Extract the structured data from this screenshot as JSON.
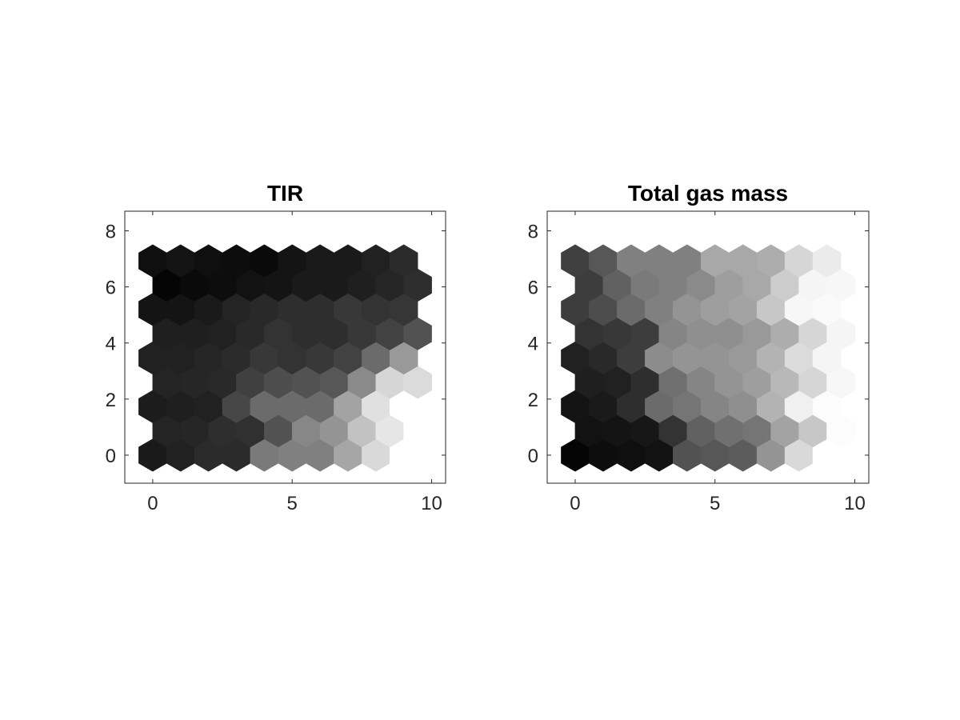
{
  "chart_data": [
    {
      "type": "heatmap",
      "title": "TIR",
      "xlabel": "",
      "ylabel": "",
      "xlim": [
        -1,
        10.5
      ],
      "ylim": [
        -1,
        8.7
      ],
      "xticks": [
        "0",
        "5",
        "10"
      ],
      "yticks": [
        "0",
        "2",
        "4",
        "6",
        "8"
      ],
      "colormap": "grayscale (dark = low, light = high)",
      "grid": "hexagonal 10 x 9",
      "rows": [
        [
          0.1,
          0.13,
          0.17,
          0.17,
          0.48,
          0.5,
          0.5,
          0.65,
          0.85,
          1.0
        ],
        [
          0.14,
          0.15,
          0.18,
          0.19,
          0.32,
          0.53,
          0.58,
          0.76,
          0.9,
          1.0
        ],
        [
          0.11,
          0.12,
          0.13,
          0.28,
          0.42,
          0.42,
          0.42,
          0.64,
          0.88,
          1.0
        ],
        [
          0.14,
          0.15,
          0.16,
          0.25,
          0.3,
          0.32,
          0.34,
          0.54,
          0.84,
          0.86
        ],
        [
          0.13,
          0.13,
          0.15,
          0.17,
          0.22,
          0.2,
          0.22,
          0.26,
          0.42,
          0.6
        ],
        [
          0.12,
          0.12,
          0.13,
          0.16,
          0.2,
          0.18,
          0.18,
          0.22,
          0.26,
          0.32
        ],
        [
          0.08,
          0.08,
          0.1,
          0.14,
          0.16,
          0.18,
          0.18,
          0.22,
          0.2,
          0.21
        ],
        [
          0.02,
          0.04,
          0.05,
          0.07,
          0.08,
          0.1,
          0.1,
          0.12,
          0.15,
          0.18
        ],
        [
          0.06,
          0.08,
          0.06,
          0.05,
          0.04,
          0.08,
          0.1,
          0.1,
          0.13,
          0.17
        ]
      ]
    },
    {
      "type": "heatmap",
      "title": "Total gas mass",
      "xlabel": "",
      "ylabel": "",
      "xlim": [
        -1,
        10.5
      ],
      "ylim": [
        -1,
        8.7
      ],
      "xticks": [
        "0",
        "5",
        "10"
      ],
      "yticks": [
        "0",
        "2",
        "4",
        "6",
        "8"
      ],
      "colormap": "grayscale (dark = low, light = high)",
      "grid": "hexagonal 10 x 9",
      "rows": [
        [
          0.02,
          0.05,
          0.06,
          0.07,
          0.32,
          0.34,
          0.36,
          0.58,
          0.85,
          1.0
        ],
        [
          0.07,
          0.08,
          0.09,
          0.2,
          0.38,
          0.44,
          0.46,
          0.64,
          0.78,
          0.99
        ],
        [
          0.08,
          0.1,
          0.18,
          0.42,
          0.46,
          0.52,
          0.56,
          0.7,
          0.94,
          0.99
        ],
        [
          0.12,
          0.13,
          0.18,
          0.44,
          0.52,
          0.58,
          0.62,
          0.72,
          0.84,
          0.97
        ],
        [
          0.13,
          0.16,
          0.24,
          0.55,
          0.58,
          0.58,
          0.6,
          0.7,
          0.86,
          0.96
        ],
        [
          0.2,
          0.22,
          0.24,
          0.52,
          0.56,
          0.56,
          0.6,
          0.68,
          0.84,
          0.96
        ],
        [
          0.24,
          0.3,
          0.42,
          0.5,
          0.58,
          0.62,
          0.64,
          0.78,
          0.97,
          0.98
        ],
        [
          0.24,
          0.38,
          0.48,
          0.5,
          0.54,
          0.62,
          0.66,
          0.8,
          0.96,
          0.97
        ],
        [
          0.25,
          0.34,
          0.5,
          0.5,
          0.5,
          0.66,
          0.66,
          0.68,
          0.84,
          0.92
        ]
      ]
    }
  ]
}
